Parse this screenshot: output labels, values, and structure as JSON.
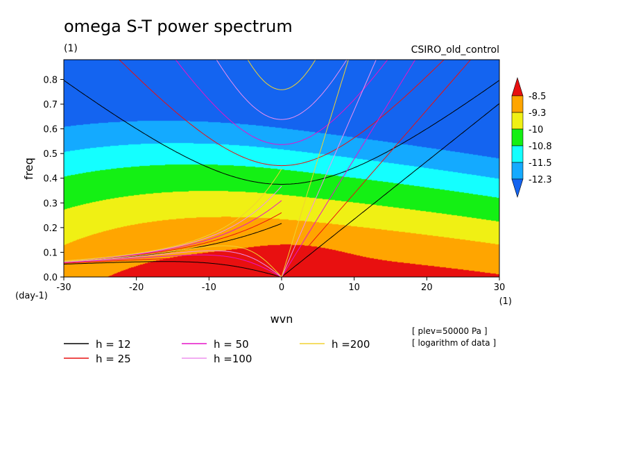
{
  "chart_data": {
    "type": "heatmap",
    "title": "omega S-T power spectrum",
    "subtitle_left": "(1)",
    "subtitle_right": "CSIRO_old_control",
    "xlabel": "wvn",
    "ylabel": "freq",
    "x_unit_label": "(1)",
    "y_unit_label": "(day-1)",
    "xlim": [
      -30,
      30
    ],
    "ylim": [
      0,
      0.88
    ],
    "x_ticks": [
      -30,
      -20,
      -10,
      0,
      10,
      20,
      30
    ],
    "x_tick_labels": [
      "-30",
      "-20",
      "-10",
      "0",
      "10",
      "20",
      "30"
    ],
    "y_ticks": [
      0,
      0.1,
      0.2,
      0.3,
      0.4,
      0.5,
      0.6,
      0.7,
      0.8
    ],
    "y_tick_labels": [
      "0.0",
      "0.1",
      "0.2",
      "0.3",
      "0.4",
      "0.5",
      "0.6",
      "0.7",
      "0.8"
    ],
    "colorbar": {
      "levels": [
        -8.5,
        -9.3,
        -10,
        -10.8,
        -11.5,
        -12.3
      ],
      "labels": [
        "-8.5",
        "-9.3",
        "-10",
        "-10.8",
        "-11.5",
        "-12.3"
      ],
      "colors": [
        "#e81010",
        "#ffa500",
        "#f0f014",
        "#14f014",
        "#14ffff",
        "#14aaff",
        "#1464f0"
      ]
    },
    "notes": [
      "[ plev=50000 Pa ]",
      "[ logarithm of data ]"
    ],
    "dispersion_curves": [
      {
        "label": "h = 12",
        "h": 12,
        "color": "#000000"
      },
      {
        "label": "h = 25",
        "h": 25,
        "color": "#e81010"
      },
      {
        "label": "h = 50",
        "h": 50,
        "color": "#e614c8"
      },
      {
        "label": "h =100",
        "h": 100,
        "color": "#ee90ee"
      },
      {
        "label": "h =200",
        "h": 200,
        "color": "#f0d232"
      }
    ]
  }
}
